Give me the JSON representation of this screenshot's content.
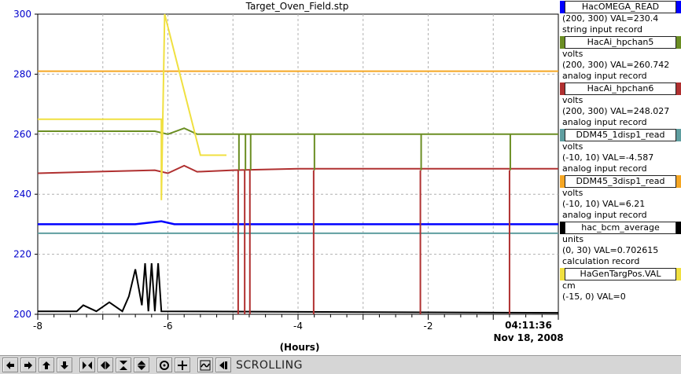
{
  "window": {
    "title": "Target_Oven_Field.stp",
    "x_axis_label": "(Hours)",
    "time_label": "04:11:36",
    "date_label": "Nov 18, 2008"
  },
  "chart_data": {
    "type": "line",
    "title": "Target_Oven_Field.stp",
    "xlabel": "(Hours)",
    "xlim": [
      -8,
      0
    ],
    "x_ticks": [
      -8,
      -6,
      -4,
      -2
    ],
    "x_tick_labels": [
      "-8",
      "-6",
      "-4",
      "-2"
    ],
    "x_end_label": "04:11:36",
    "ylim": [
      200,
      300
    ],
    "y_ticks": [
      200,
      220,
      240,
      260,
      280,
      300
    ],
    "y_tick_labels": [
      "200",
      "220",
      "240",
      "260",
      "280",
      "300"
    ],
    "y_tick_color": "#0000cc",
    "grid": true,
    "legend_position": "right",
    "series": [
      {
        "name": "HacOMEGA_READ",
        "color": "#0000ff",
        "units": "",
        "range": "(200, 300)",
        "value": "VAL=230.4",
        "record": "string input record",
        "points": [
          [
            -8,
            230
          ],
          [
            -6.5,
            230
          ],
          [
            -6.1,
            231
          ],
          [
            -5.9,
            230
          ],
          [
            -4.9,
            230
          ],
          [
            -4,
            230
          ],
          [
            -3,
            230
          ],
          [
            -2.2,
            230
          ],
          [
            -1.1,
            230
          ],
          [
            0,
            230
          ]
        ]
      },
      {
        "name": "HacAi_hpchan5",
        "color": "#6b8e23",
        "units": "volts",
        "range": "(200, 300)",
        "value": "VAL=260.742",
        "record": "analog input record",
        "points": [
          [
            -8,
            261
          ],
          [
            -6.2,
            261
          ],
          [
            -6.0,
            260
          ],
          [
            -5.75,
            262
          ],
          [
            -5.55,
            260
          ],
          [
            -5,
            260
          ],
          [
            -4,
            260
          ],
          [
            -3,
            260
          ],
          [
            -2.1,
            260
          ],
          [
            -1.1,
            260
          ],
          [
            0,
            260
          ]
        ]
      },
      {
        "name": "HacAi_hpchan6",
        "color": "#b03030",
        "units": "volts",
        "range": "(200, 300)",
        "value": "VAL=248.027",
        "record": "analog input record",
        "points": [
          [
            -8,
            247
          ],
          [
            -6.2,
            248
          ],
          [
            -6.0,
            247
          ],
          [
            -5.75,
            249.5
          ],
          [
            -5.55,
            247.5
          ],
          [
            -5,
            248
          ],
          [
            -4,
            248.5
          ],
          [
            -3,
            248.5
          ],
          [
            -2,
            248.5
          ],
          [
            -1,
            248.5
          ],
          [
            0,
            248.5
          ]
        ]
      },
      {
        "name": "DDM45_1disp1_read",
        "color": "#5f9ea0",
        "units": "volts",
        "range": "(-10, 10)",
        "value": "VAL=-4.587",
        "record": "analog input record",
        "points": [
          [
            -8,
            227
          ],
          [
            0,
            227
          ]
        ]
      },
      {
        "name": "DDM45_3disp1_read",
        "color": "#f5a623",
        "units": "volts",
        "range": "(-10, 10)",
        "value": "VAL=6.21",
        "record": "analog input record",
        "points": [
          [
            -8,
            281
          ],
          [
            0,
            281
          ]
        ]
      },
      {
        "name": "hac_bcm_average",
        "color": "#000000",
        "units": "units",
        "range": "(0, 30)",
        "value": "VAL=0.702615",
        "record": "calculation record",
        "points": [
          [
            -8,
            201
          ],
          [
            -7.4,
            201
          ],
          [
            -7.3,
            203
          ],
          [
            -7.1,
            201
          ],
          [
            -6.9,
            204
          ],
          [
            -6.7,
            201
          ],
          [
            -6.6,
            206
          ],
          [
            -6.5,
            215
          ],
          [
            -6.4,
            203
          ],
          [
            -6.35,
            217
          ],
          [
            -6.3,
            201
          ],
          [
            -6.25,
            217
          ],
          [
            -6.2,
            201
          ],
          [
            -6.15,
            217
          ],
          [
            -6.1,
            201
          ],
          [
            0,
            200.5
          ]
        ]
      },
      {
        "name": "HaGenTargPos.VAL",
        "color": "#f0e040",
        "units": "cm",
        "range": "(-15, 0)",
        "value": "VAL=0",
        "record": "",
        "points": [
          [
            -8,
            265
          ],
          [
            -6.1,
            265
          ],
          [
            -6.1,
            238
          ],
          [
            -6.05,
            300
          ],
          [
            -5.5,
            253
          ],
          [
            -5.1,
            253
          ]
        ]
      }
    ]
  },
  "legend": [
    {
      "name": "HacOMEGA_READ",
      "lines": [
        "(200, 300) VAL=230.4",
        "string input record"
      ],
      "color": "#0000ff"
    },
    {
      "name": "HacAi_hpchan5",
      "lines": [
        "volts",
        "(200, 300) VAL=260.742",
        "analog input record"
      ],
      "color": "#6b8e23"
    },
    {
      "name": "HacAi_hpchan6",
      "lines": [
        "volts",
        "(200, 300) VAL=248.027",
        "analog input record"
      ],
      "color": "#b03030"
    },
    {
      "name": "DDM45_1disp1_read",
      "lines": [
        "volts",
        "(-10, 10) VAL=-4.587",
        "analog input record"
      ],
      "color": "#5f9ea0"
    },
    {
      "name": "DDM45_3disp1_read",
      "lines": [
        "volts",
        "(-10, 10) VAL=6.21",
        "analog input record"
      ],
      "color": "#f5a623"
    },
    {
      "name": "hac_bcm_average",
      "lines": [
        "units",
        "(0, 30) VAL=0.702615",
        "calculation record"
      ],
      "color": "#000000"
    },
    {
      "name": "HaGenTargPos.VAL",
      "lines": [
        "cm",
        "(-15, 0) VAL=0"
      ],
      "color": "#f0e040"
    }
  ],
  "toolbar": {
    "buttons": [
      {
        "name": "scroll-left-button",
        "icon": "arrow-left-icon"
      },
      {
        "name": "scroll-right-button",
        "icon": "arrow-right-icon"
      },
      {
        "name": "scroll-up-button",
        "icon": "arrow-up-icon"
      },
      {
        "name": "scroll-down-button",
        "icon": "arrow-down-icon"
      },
      {
        "name": "zoom-in-x-button",
        "icon": "zoom-in-horizontal-icon"
      },
      {
        "name": "zoom-out-x-button",
        "icon": "zoom-out-horizontal-icon"
      },
      {
        "name": "zoom-in-y-button",
        "icon": "zoom-in-vertical-icon"
      },
      {
        "name": "zoom-out-y-button",
        "icon": "zoom-out-vertical-icon"
      },
      {
        "name": "auto-zoom-button",
        "icon": "target-circle-icon"
      },
      {
        "name": "crosshair-button",
        "icon": "crosshair-plus-icon"
      },
      {
        "name": "stagger-button",
        "icon": "wave-icon"
      },
      {
        "name": "scroll-mode-button",
        "icon": "arrow-left-bar-icon"
      }
    ],
    "status": "SCROLLING"
  }
}
